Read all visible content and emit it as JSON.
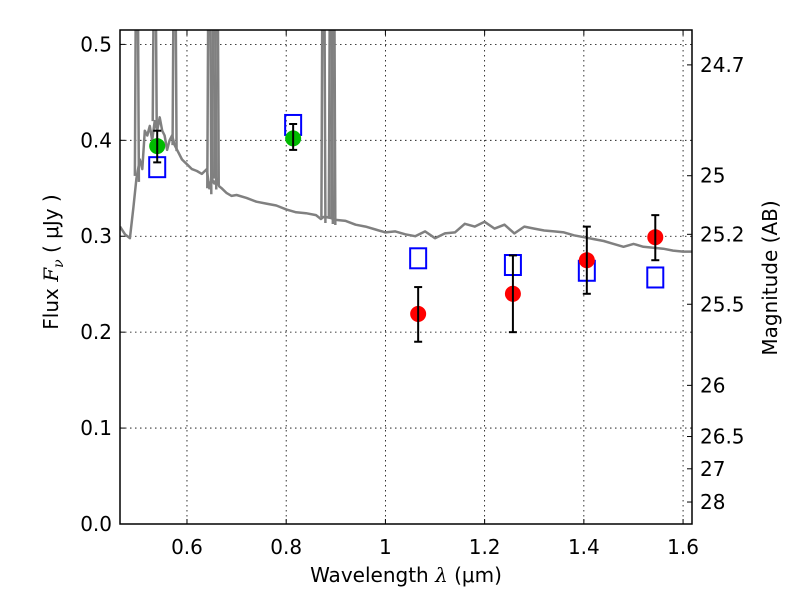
{
  "chart_data": {
    "type": "scatter",
    "title": "",
    "xlabel": "Wavelength  λ (μm)",
    "ylabel": "Flux  F_ν  ( μJy )",
    "ylabel_parts": {
      "prefix": "Flux  ",
      "symbol": "F",
      "subscript": "ν",
      "unit": "  ( μJy )"
    },
    "xlabel_parts": {
      "prefix": "Wavelength  ",
      "symbol": "λ",
      "unit": " (μm)"
    },
    "y2label": "Magnitude (AB)",
    "xlim": [
      0.465,
      1.618
    ],
    "ylim": [
      0.0,
      0.515
    ],
    "grid": true,
    "x_ticks": [
      0.6,
      0.8,
      1.0,
      1.2,
      1.4,
      1.6
    ],
    "x_tick_labels": [
      "0.6",
      "0.8",
      "1",
      "1.2",
      "1.4",
      "1.6"
    ],
    "y_ticks": [
      0.0,
      0.1,
      0.2,
      0.3,
      0.4,
      0.5
    ],
    "y_tick_labels": [
      "0.0",
      "0.1",
      "0.2",
      "0.3",
      "0.4",
      "0.5"
    ],
    "y2_ticks": [
      24.7,
      25,
      25.2,
      25.5,
      26,
      26.5,
      27,
      28
    ],
    "y2_tick_labels": [
      "24.7",
      "25",
      "25.2",
      "25.5",
      "26",
      "26.5",
      "27",
      "28"
    ],
    "ab_zero_point_ujy": 23.9,
    "colors": {
      "spectrum": "#808080",
      "green_points": "#00bb00",
      "red_points": "#ff0000",
      "model_squares": "#0000ff",
      "error_bars": "#000000",
      "grid": "#000000"
    },
    "series": [
      {
        "name": "template-spectrum",
        "kind": "line",
        "x": [
          0.465,
          0.475,
          0.485,
          0.492,
          0.498,
          0.505,
          0.51,
          0.515,
          0.52,
          0.525,
          0.53,
          0.535,
          0.54,
          0.545,
          0.55,
          0.555,
          0.56,
          0.565,
          0.57,
          0.575,
          0.58,
          0.59,
          0.6,
          0.61,
          0.62,
          0.63,
          0.64,
          0.645,
          0.65,
          0.655,
          0.66,
          0.665,
          0.67,
          0.68,
          0.69,
          0.7,
          0.72,
          0.74,
          0.76,
          0.78,
          0.8,
          0.82,
          0.84,
          0.86,
          0.87,
          0.875,
          0.88,
          0.89,
          0.9,
          0.92,
          0.94,
          0.96,
          0.98,
          1.0,
          1.02,
          1.04,
          1.06,
          1.08,
          1.1,
          1.12,
          1.14,
          1.16,
          1.18,
          1.2,
          1.22,
          1.24,
          1.26,
          1.28,
          1.3,
          1.32,
          1.34,
          1.36,
          1.38,
          1.4,
          1.42,
          1.44,
          1.46,
          1.48,
          1.5,
          1.52,
          1.54,
          1.56,
          1.58,
          1.6,
          1.618
        ],
        "y": [
          0.31,
          0.302,
          0.298,
          0.33,
          0.36,
          0.38,
          0.37,
          0.41,
          0.405,
          0.415,
          0.4,
          0.42,
          0.41,
          0.424,
          0.41,
          0.405,
          0.39,
          0.4,
          0.405,
          0.395,
          0.39,
          0.38,
          0.375,
          0.37,
          0.368,
          0.365,
          0.37,
          0.35,
          0.36,
          0.355,
          0.36,
          0.352,
          0.35,
          0.345,
          0.342,
          0.343,
          0.34,
          0.336,
          0.334,
          0.332,
          0.328,
          0.325,
          0.324,
          0.322,
          0.318,
          0.32,
          0.32,
          0.319,
          0.317,
          0.316,
          0.312,
          0.31,
          0.307,
          0.304,
          0.305,
          0.302,
          0.3,
          0.305,
          0.298,
          0.303,
          0.304,
          0.313,
          0.31,
          0.315,
          0.308,
          0.312,
          0.303,
          0.31,
          0.308,
          0.306,
          0.305,
          0.304,
          0.301,
          0.299,
          0.297,
          0.295,
          0.292,
          0.289,
          0.292,
          0.289,
          0.288,
          0.287,
          0.285,
          0.284,
          0.284
        ],
        "absorption_spikes": [
          {
            "x": 0.499,
            "to": 0.515
          },
          {
            "x": 0.535,
            "to": 0.515
          },
          {
            "x": 0.575,
            "to": 0.515
          },
          {
            "x": 0.645,
            "to": 0.515
          },
          {
            "x": 0.655,
            "to": 0.515
          },
          {
            "x": 0.66,
            "to": 0.515
          },
          {
            "x": 0.875,
            "to": 0.515
          },
          {
            "x": 0.89,
            "to": 0.515
          },
          {
            "x": 0.895,
            "to": 0.515
          }
        ]
      },
      {
        "name": "observed-optical",
        "kind": "points",
        "marker": "circle",
        "color": "#00bb00",
        "x": [
          0.54,
          0.814
        ],
        "y": [
          0.394,
          0.402
        ],
        "yerr_low": [
          0.377,
          0.39
        ],
        "yerr_high": [
          0.41,
          0.417
        ]
      },
      {
        "name": "observed-nir",
        "kind": "points",
        "marker": "circle",
        "color": "#ff0000",
        "x": [
          1.066,
          1.257,
          1.406,
          1.544
        ],
        "y": [
          0.219,
          0.24,
          0.275,
          0.299
        ],
        "yerr_low": [
          0.19,
          0.2,
          0.24,
          0.275
        ],
        "yerr_high": [
          0.247,
          0.28,
          0.31,
          0.322
        ]
      },
      {
        "name": "model-photometry",
        "kind": "points",
        "marker": "open-square",
        "color": "#0000ff",
        "x": [
          0.54,
          0.814,
          1.066,
          1.257,
          1.406,
          1.544
        ],
        "y": [
          0.372,
          0.416,
          0.277,
          0.27,
          0.264,
          0.257
        ]
      }
    ]
  }
}
